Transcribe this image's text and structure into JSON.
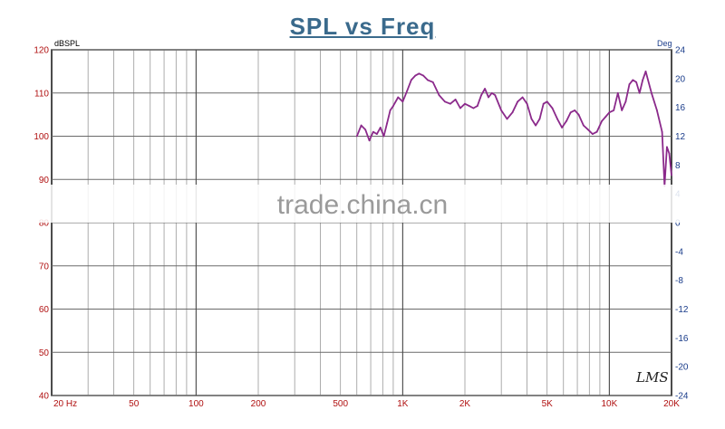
{
  "chart_data": {
    "type": "line",
    "title": "SPL vs Freq",
    "y_unit": "dBSPL",
    "y2_unit": "Deg",
    "xscale": "log",
    "xlim": [
      20,
      20000
    ],
    "ylim": [
      40,
      120
    ],
    "y2lim": [
      -24,
      24
    ],
    "grid": true,
    "x_tick_values": [
      20,
      50,
      100,
      200,
      500,
      1000,
      2000,
      5000,
      10000,
      20000
    ],
    "x_tick_labels": [
      "20 Hz",
      "50",
      "100",
      "200",
      "500",
      "1K",
      "2K",
      "5K",
      "10K",
      "20K"
    ],
    "y_ticks": [
      40,
      50,
      60,
      70,
      80,
      90,
      100,
      110,
      120
    ],
    "y2_ticks": [
      "-24",
      "-20",
      "-16",
      "-12",
      "-8",
      "-4",
      "0",
      "4",
      "8",
      "12",
      "16",
      "20",
      "24"
    ],
    "series": [
      {
        "color": "#8b2a8b",
        "x": [
          600,
          630,
          660,
          690,
          720,
          750,
          780,
          810,
          840,
          870,
          900,
          950,
          1000,
          1050,
          1100,
          1150,
          1200,
          1260,
          1320,
          1400,
          1500,
          1600,
          1700,
          1800,
          1900,
          2000,
          2100,
          2200,
          2300,
          2400,
          2500,
          2600,
          2700,
          2800,
          3000,
          3200,
          3400,
          3600,
          3800,
          4000,
          4200,
          4400,
          4600,
          4800,
          5000,
          5300,
          5600,
          5900,
          6200,
          6500,
          6800,
          7100,
          7500,
          7900,
          8300,
          8700,
          9200,
          9600,
          10000,
          10500,
          11000,
          11500,
          12000,
          12500,
          13000,
          13500,
          14000,
          14500,
          15000,
          16000,
          17000,
          18000,
          18500,
          19000,
          19500,
          20000
        ],
        "values": [
          100,
          102.5,
          101.5,
          99,
          101,
          100.5,
          102,
          100,
          103,
          106,
          107,
          109,
          108,
          110.5,
          113,
          114,
          114.5,
          114,
          113,
          112.5,
          109.5,
          108,
          107.5,
          108.5,
          106.5,
          107.5,
          107,
          106.5,
          107,
          109.5,
          111,
          109,
          110,
          109.5,
          106,
          104,
          105.5,
          108,
          109,
          107.5,
          104,
          102.5,
          104,
          107.5,
          108,
          106.5,
          104,
          102,
          103.5,
          105.5,
          106,
          105,
          102.5,
          101.5,
          100.5,
          101,
          103.5,
          104.5,
          105.5,
          106,
          110,
          106,
          108,
          112,
          113,
          112.5,
          110,
          113,
          115,
          110,
          106,
          101,
          88.5,
          97.5,
          96,
          91
        ]
      }
    ]
  },
  "watermark": "trade.china.cn",
  "logo_text": "LMS"
}
